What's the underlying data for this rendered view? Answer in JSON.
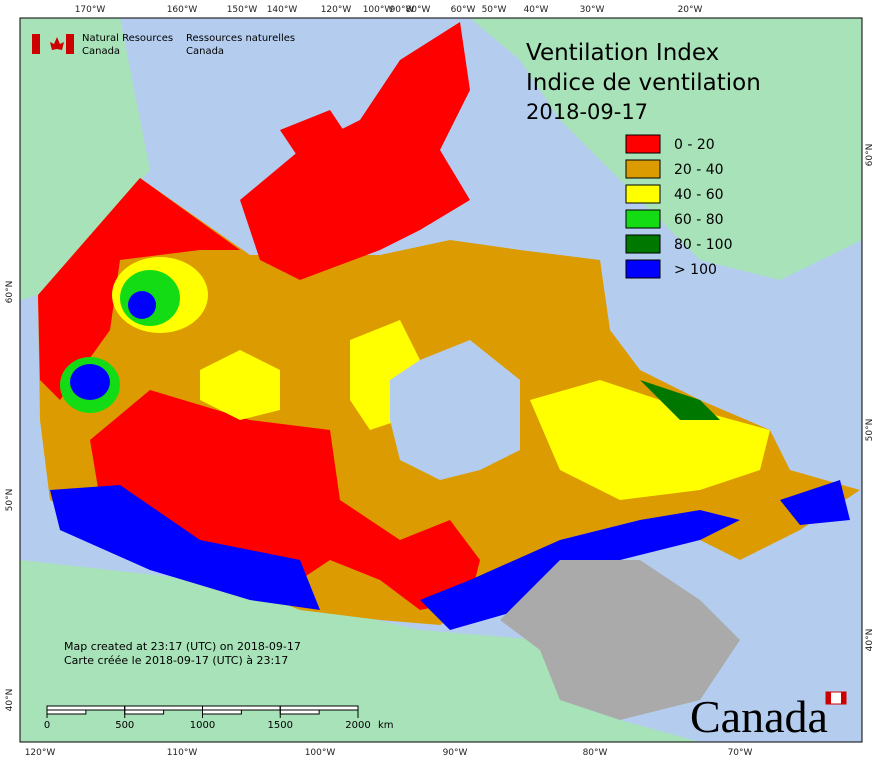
{
  "header": {
    "agency_en": [
      "Natural Resources",
      "Canada"
    ],
    "agency_fr": [
      "Ressources naturelles",
      "Canada"
    ]
  },
  "title": [
    "Ventilation Index",
    "Indice de ventilation",
    "2018-09-17"
  ],
  "legend": {
    "items": [
      {
        "label": "0 - 20",
        "color": "#ff0000"
      },
      {
        "label": "20 - 40",
        "color": "#dc9b00"
      },
      {
        "label": "40 - 60",
        "color": "#ffff00"
      },
      {
        "label": "60 - 80",
        "color": "#14dc14"
      },
      {
        "label": "80 - 100",
        "color": "#007800"
      },
      {
        "label": "> 100",
        "color": "#0000ff"
      }
    ]
  },
  "graticule": {
    "top": [
      "170°W",
      "160°W",
      "150°W",
      "140°W",
      "120°W",
      "100°W",
      "90°W",
      "80°W",
      "60°W",
      "50°W",
      "40°W",
      "30°W",
      "20°W"
    ],
    "bottom": [
      "120°W",
      "110°W",
      "100°W",
      "90°W",
      "80°W",
      "70°W"
    ],
    "left": [
      "60°N",
      "50°N",
      "40°N"
    ],
    "right": [
      "60°N",
      "50°N",
      "40°N"
    ]
  },
  "footer": [
    "Map created at 23:17 (UTC) on 2018-09-17",
    "Carte créée le 2018-09-17 (UTC) à 23:17"
  ],
  "scale_bar": {
    "ticks": [
      0,
      500,
      1000,
      1500,
      2000
    ],
    "unit": "km"
  },
  "wordmark": "Canada"
}
